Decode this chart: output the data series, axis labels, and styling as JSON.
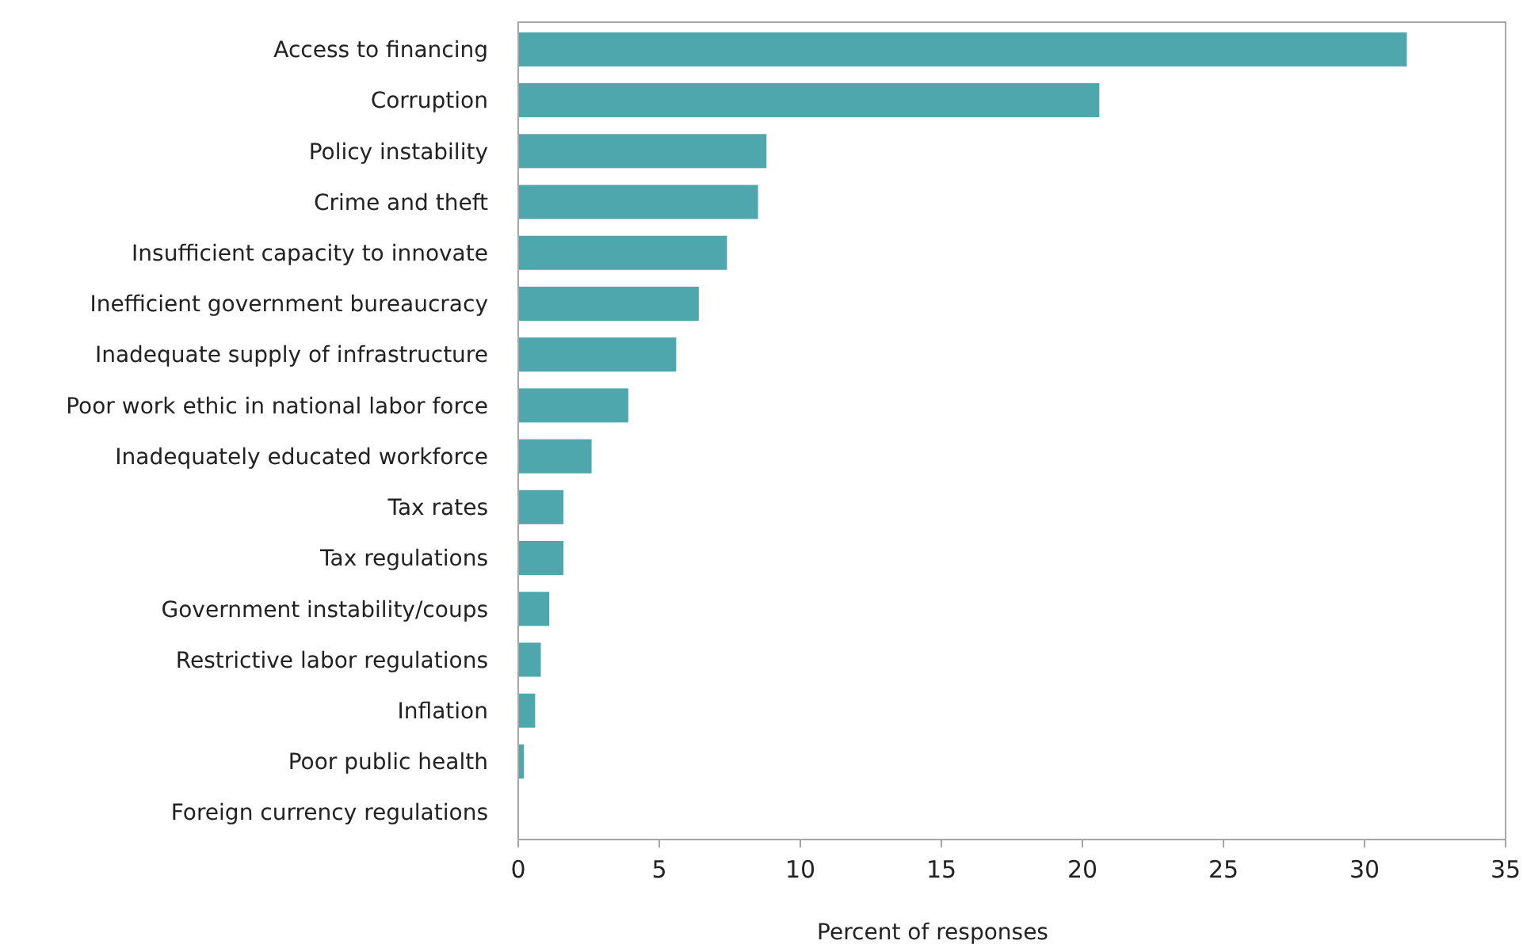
{
  "chart_data": {
    "type": "bar",
    "orientation": "horizontal",
    "xlabel": "Percent of responses",
    "categories": [
      "Access to financing",
      "Corruption",
      "Policy instability",
      "Crime and theft",
      "Insufficient capacity to innovate",
      "Inefficient government bureaucracy",
      "Inadequate supply of infrastructure",
      "Poor work ethic in national labor force",
      "Inadequately educated workforce",
      "Tax rates",
      "Tax regulations",
      "Government instability/coups",
      "Restrictive labor regulations",
      "Inflation",
      "Poor public health",
      "Foreign currency regulations"
    ],
    "values": [
      31.5,
      20.6,
      8.8,
      8.5,
      7.4,
      6.4,
      5.6,
      3.9,
      2.6,
      1.6,
      1.6,
      1.1,
      0.8,
      0.6,
      0.2,
      0
    ],
    "color": "#4ea7ac",
    "xlim": [
      0,
      35
    ],
    "xticks": [
      0,
      5,
      10,
      15,
      20,
      25,
      30,
      35
    ],
    "grid": false
  }
}
